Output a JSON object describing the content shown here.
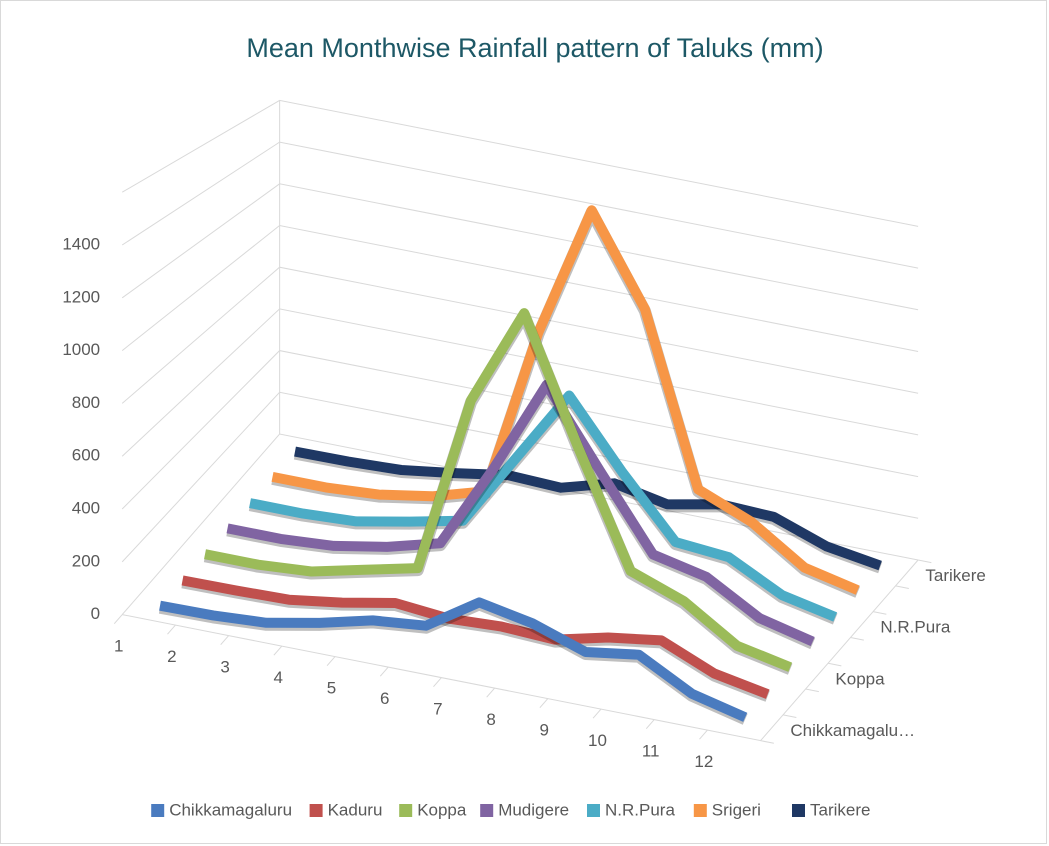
{
  "chart_data": {
    "type": "line3d",
    "title": "Mean Monthwise Rainfall pattern of Taluks (mm)",
    "categories": [
      "1",
      "2",
      "3",
      "4",
      "5",
      "6",
      "7",
      "8",
      "9",
      "10",
      "11",
      "12"
    ],
    "depth_labels": [
      "Chikkamagalu…",
      "Koppa",
      "N.R.Pura",
      "Tarikere"
    ],
    "series": [
      {
        "name": "Chikkamagaluru",
        "color": "#4a7bbf",
        "values": [
          5,
          8,
          20,
          60,
          110,
          130,
          260,
          220,
          150,
          180,
          70,
          20
        ]
      },
      {
        "name": "Kaduru",
        "color": "#c0504d",
        "values": [
          3,
          5,
          10,
          40,
          80,
          60,
          70,
          60,
          110,
          140,
          50,
          10
        ]
      },
      {
        "name": "Koppa",
        "color": "#9bbb59",
        "values": [
          5,
          5,
          20,
          70,
          120,
          850,
          1250,
          750,
          280,
          200,
          60,
          15
        ]
      },
      {
        "name": "Mudigere",
        "color": "#8064a2",
        "values": [
          5,
          5,
          20,
          60,
          120,
          480,
          880,
          560,
          250,
          200,
          70,
          15
        ]
      },
      {
        "name": "N.R.Pura",
        "color": "#4bacc6",
        "values": [
          3,
          3,
          15,
          60,
          110,
          430,
          750,
          460,
          200,
          180,
          60,
          10
        ]
      },
      {
        "name": "Srigeri",
        "color": "#f79646",
        "values": [
          5,
          5,
          20,
          60,
          130,
          900,
          1500,
          1100,
          330,
          230,
          70,
          15
        ]
      },
      {
        "name": "Tarikere",
        "color": "#1f3864",
        "values": [
          3,
          5,
          15,
          50,
          90,
          80,
          150,
          100,
          150,
          140,
          50,
          10
        ]
      }
    ],
    "ylim": [
      0,
      1600
    ],
    "yticks": [
      0,
      200,
      400,
      600,
      800,
      1000,
      1200,
      1400
    ],
    "grid": true,
    "legend": "bottom"
  }
}
